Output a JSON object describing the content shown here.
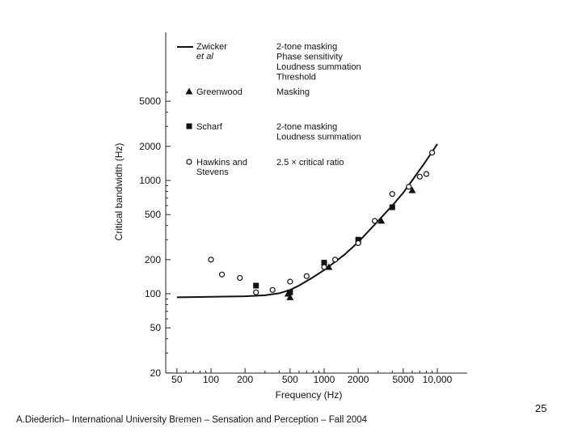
{
  "footer": {
    "text": "A.Diederich– International University Bremen – Sensation and Perception – Fall 2004",
    "page_number": "25"
  },
  "chart_data": {
    "type": "scatter",
    "title": "",
    "xlabel": "Frequency (Hz)",
    "ylabel": "Critical bandwidth (Hz)",
    "xscale": "log",
    "yscale": "log",
    "xlim": [
      40,
      13000
    ],
    "ylim": [
      20,
      15000
    ],
    "x_ticks": [
      {
        "value": 50,
        "label": "50"
      },
      {
        "value": 100,
        "label": "100"
      },
      {
        "value": 200,
        "label": "200"
      },
      {
        "value": 500,
        "label": "500"
      },
      {
        "value": 1000,
        "label": "1000"
      },
      {
        "value": 2000,
        "label": "2000"
      },
      {
        "value": 5000,
        "label": "5000"
      },
      {
        "value": 10000,
        "label": "10,000"
      }
    ],
    "y_ticks": [
      {
        "value": 20,
        "label": "20"
      },
      {
        "value": 50,
        "label": "50"
      },
      {
        "value": 100,
        "label": "100"
      },
      {
        "value": 200,
        "label": "200"
      },
      {
        "value": 500,
        "label": "500"
      },
      {
        "value": 1000,
        "label": "1000"
      },
      {
        "value": 2000,
        "label": "2000"
      },
      {
        "value": 5000,
        "label": "5000"
      }
    ],
    "series": [
      {
        "name": "Zwicker et al",
        "label_lines": [
          "Zwicker",
          "et al"
        ],
        "method_lines": [
          "2-tone masking",
          "Phase sensitivity",
          "Loudness summation",
          "Threshold"
        ],
        "marker": "line",
        "x": [
          50,
          100,
          200,
          300,
          400,
          500,
          600,
          800,
          1000,
          1500,
          2000,
          3000,
          4000,
          5000,
          6000,
          8000,
          10000
        ],
        "y": [
          93,
          94,
          95,
          97,
          101,
          108,
          118,
          140,
          162,
          220,
          285,
          440,
          600,
          780,
          1000,
          1500,
          2100
        ]
      },
      {
        "name": "Greenwood",
        "label_lines": [
          "Greenwood"
        ],
        "method_lines": [
          "Masking"
        ],
        "marker": "triangle",
        "x": [
          480,
          500,
          1100,
          3200,
          6000
        ],
        "y": [
          100,
          93,
          172,
          440,
          820
        ]
      },
      {
        "name": "Scharf",
        "label_lines": [
          "Scharf"
        ],
        "method_lines": [
          "2-tone masking",
          "Loudness summation"
        ],
        "marker": "square",
        "x": [
          250,
          500,
          1000,
          2000,
          4000
        ],
        "y": [
          118,
          103,
          188,
          300,
          580
        ]
      },
      {
        "name": "Hawkins and Stevens",
        "label_lines": [
          "Hawkins and",
          "Stevens"
        ],
        "method_lines": [
          "2.5 × critical ratio"
        ],
        "marker": "circle",
        "x": [
          100,
          125,
          180,
          250,
          350,
          500,
          700,
          1000,
          1250,
          2000,
          2800,
          4000,
          5600,
          7000,
          8000,
          9000
        ],
        "y": [
          200,
          148,
          138,
          103,
          108,
          128,
          143,
          172,
          200,
          280,
          440,
          760,
          880,
          1080,
          1140,
          1760
        ]
      }
    ]
  }
}
